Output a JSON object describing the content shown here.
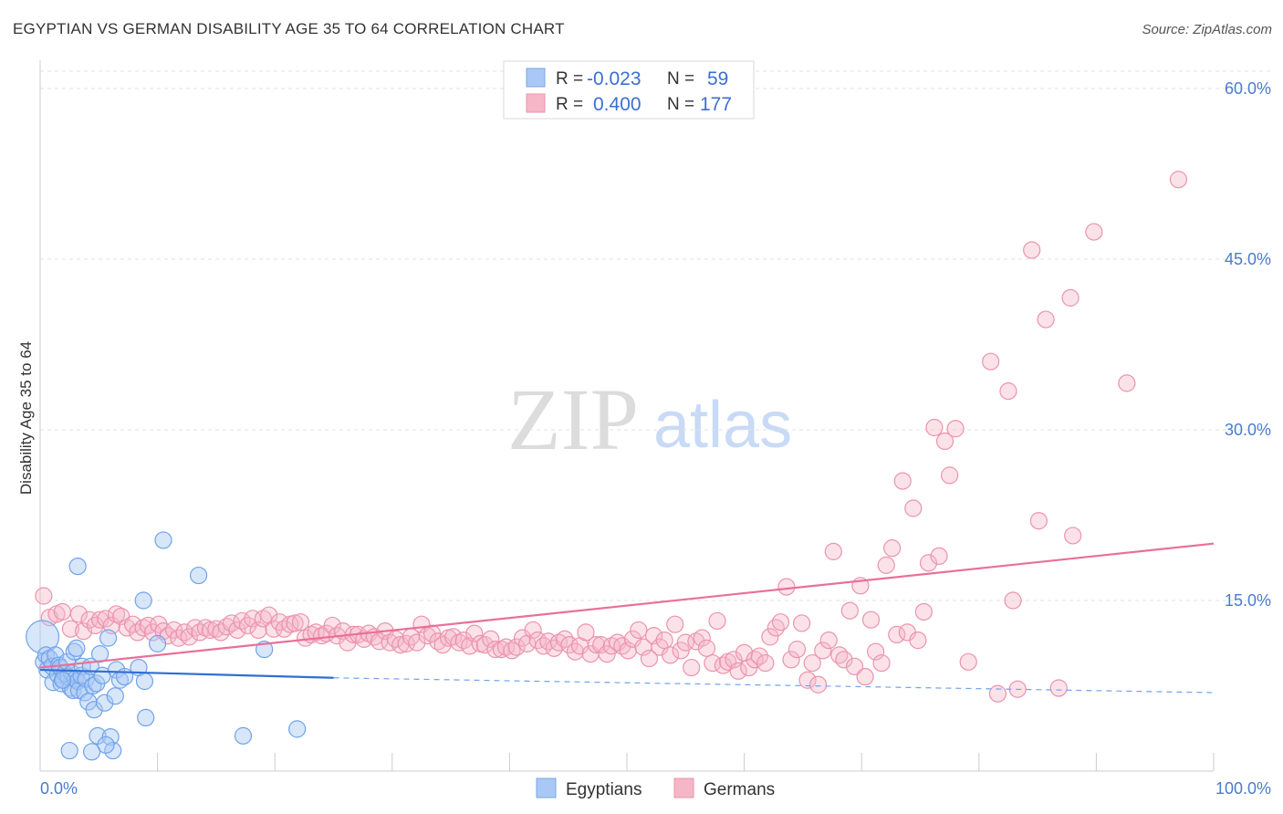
{
  "header": {
    "title": "EGYPTIAN VS GERMAN DISABILITY AGE 35 TO 64 CORRELATION CHART",
    "source": "Source: ZipAtlas.com"
  },
  "watermark": {
    "zip": "ZIP",
    "atlas": "atlas"
  },
  "legend_top": {
    "rows": [
      {
        "r_label": "R =",
        "r_value": "-0.023",
        "n_label": "N =",
        "n_value": "59",
        "color": "#a9c8f5"
      },
      {
        "r_label": "R =",
        "r_value": "0.400",
        "n_label": "N =",
        "n_value": "177",
        "color": "#f5b6c8"
      }
    ]
  },
  "legend_bottom": {
    "items": [
      {
        "label": "Egyptians",
        "color": "#a9c8f5"
      },
      {
        "label": "Germans",
        "color": "#f5b6c8"
      }
    ]
  },
  "chart_data": {
    "type": "scatter",
    "title": "EGYPTIAN VS GERMAN DISABILITY AGE 35 TO 64 CORRELATION CHART",
    "ylabel": "Disability Age 35 to 64",
    "xlim": [
      0,
      100
    ],
    "ylim": [
      0,
      60
    ],
    "x_tick_labels": [
      "0.0%",
      "100.0%"
    ],
    "y_ticks": [
      15,
      30,
      45,
      60
    ],
    "y_tick_labels": [
      "15.0%",
      "30.0%",
      "45.0%",
      "60.0%"
    ],
    "grid": true,
    "legend_position": "top-center",
    "series": [
      {
        "name": "Egyptians",
        "color": "#6fa3ea",
        "trend": {
          "x0": 0,
          "y0": 8.9,
          "x1": 25,
          "y1": 8.2,
          "dash_to_x": 100,
          "dash_to_y": 6.9
        },
        "points": [
          [
            0.2,
            11.8
          ],
          [
            0.3,
            9.6
          ],
          [
            0.5,
            10.2
          ],
          [
            0.6,
            8.9
          ],
          [
            0.8,
            9.9
          ],
          [
            1.0,
            9.2
          ],
          [
            1.1,
            7.8
          ],
          [
            1.3,
            10.2
          ],
          [
            1.5,
            8.5
          ],
          [
            1.6,
            9.3
          ],
          [
            1.7,
            9.1
          ],
          [
            1.8,
            7.7
          ],
          [
            2.0,
            8.0
          ],
          [
            2.1,
            8.6
          ],
          [
            2.3,
            9.6
          ],
          [
            2.4,
            8.3
          ],
          [
            2.6,
            7.3
          ],
          [
            2.7,
            8.6
          ],
          [
            2.8,
            7.1
          ],
          [
            2.9,
            10.5
          ],
          [
            3.0,
            8.1
          ],
          [
            3.1,
            10.8
          ],
          [
            3.2,
            7.9
          ],
          [
            3.3,
            7.1
          ],
          [
            3.5,
            8.4
          ],
          [
            3.6,
            9.2
          ],
          [
            3.8,
            6.9
          ],
          [
            3.9,
            8.1
          ],
          [
            4.1,
            6.1
          ],
          [
            4.3,
            9.2
          ],
          [
            4.5,
            7.5
          ],
          [
            4.6,
            5.4
          ],
          [
            4.8,
            7.7
          ],
          [
            4.9,
            3.1
          ],
          [
            5.1,
            10.3
          ],
          [
            5.3,
            8.4
          ],
          [
            5.5,
            6.0
          ],
          [
            5.8,
            11.7
          ],
          [
            6.0,
            3.0
          ],
          [
            6.2,
            1.8
          ],
          [
            6.4,
            6.6
          ],
          [
            6.5,
            8.9
          ],
          [
            6.8,
            8.0
          ],
          [
            7.2,
            8.3
          ],
          [
            8.4,
            9.1
          ],
          [
            8.8,
            15.0
          ],
          [
            8.9,
            7.9
          ],
          [
            9.0,
            4.7
          ],
          [
            10.0,
            11.2
          ],
          [
            10.5,
            20.3
          ],
          [
            13.5,
            17.2
          ],
          [
            17.3,
            3.1
          ],
          [
            19.1,
            10.7
          ],
          [
            21.9,
            3.7
          ],
          [
            1.9,
            8.0
          ],
          [
            3.2,
            18.0
          ],
          [
            5.6,
            2.3
          ],
          [
            4.4,
            1.7
          ],
          [
            2.5,
            1.8
          ]
        ],
        "sizes": {
          "0": 34
        }
      },
      {
        "name": "Germans",
        "color": "#f08fae",
        "trend": {
          "x0": 0,
          "y0": 9.1,
          "x1": 100,
          "y1": 20.0
        },
        "points": [
          [
            0.3,
            15.4
          ],
          [
            0.8,
            13.5
          ],
          [
            1.4,
            13.8
          ],
          [
            1.9,
            14.0
          ],
          [
            2.6,
            12.5
          ],
          [
            3.3,
            13.8
          ],
          [
            3.7,
            12.3
          ],
          [
            4.2,
            13.3
          ],
          [
            4.7,
            12.8
          ],
          [
            5.1,
            13.3
          ],
          [
            5.6,
            13.4
          ],
          [
            6.1,
            12.8
          ],
          [
            6.5,
            13.8
          ],
          [
            6.9,
            13.6
          ],
          [
            7.4,
            12.6
          ],
          [
            7.9,
            12.9
          ],
          [
            8.3,
            12.2
          ],
          [
            8.8,
            12.6
          ],
          [
            9.2,
            12.8
          ],
          [
            9.6,
            12.2
          ],
          [
            10.1,
            12.9
          ],
          [
            10.5,
            12.3
          ],
          [
            10.9,
            11.9
          ],
          [
            11.4,
            12.4
          ],
          [
            11.8,
            11.7
          ],
          [
            12.3,
            12.2
          ],
          [
            12.7,
            11.8
          ],
          [
            13.2,
            12.6
          ],
          [
            13.6,
            12.2
          ],
          [
            14.1,
            12.6
          ],
          [
            14.5,
            12.4
          ],
          [
            15.0,
            12.5
          ],
          [
            15.4,
            12.2
          ],
          [
            15.9,
            12.7
          ],
          [
            16.3,
            13.0
          ],
          [
            16.8,
            12.4
          ],
          [
            17.2,
            13.2
          ],
          [
            17.7,
            12.8
          ],
          [
            18.1,
            13.4
          ],
          [
            18.6,
            12.4
          ],
          [
            19.0,
            13.4
          ],
          [
            19.5,
            13.7
          ],
          [
            19.9,
            12.5
          ],
          [
            20.4,
            13.1
          ],
          [
            20.8,
            12.5
          ],
          [
            21.3,
            12.9
          ],
          [
            21.7,
            13.0
          ],
          [
            22.2,
            13.1
          ],
          [
            22.6,
            11.7
          ],
          [
            23.1,
            12.0
          ],
          [
            23.5,
            12.2
          ],
          [
            24.0,
            11.9
          ],
          [
            24.4,
            12.1
          ],
          [
            24.9,
            12.8
          ],
          [
            25.3,
            11.9
          ],
          [
            25.8,
            12.3
          ],
          [
            26.2,
            11.3
          ],
          [
            26.7,
            12.0
          ],
          [
            27.1,
            12.0
          ],
          [
            27.6,
            11.6
          ],
          [
            28.0,
            12.1
          ],
          [
            28.5,
            11.8
          ],
          [
            28.9,
            11.4
          ],
          [
            29.4,
            12.3
          ],
          [
            29.8,
            11.3
          ],
          [
            30.3,
            11.6
          ],
          [
            30.7,
            11.1
          ],
          [
            31.2,
            11.2
          ],
          [
            31.6,
            11.8
          ],
          [
            32.1,
            11.3
          ],
          [
            32.5,
            12.9
          ],
          [
            33.0,
            11.9
          ],
          [
            33.4,
            12.1
          ],
          [
            33.9,
            11.4
          ],
          [
            34.3,
            11.1
          ],
          [
            34.8,
            11.7
          ],
          [
            35.2,
            11.8
          ],
          [
            35.7,
            11.3
          ],
          [
            36.1,
            11.5
          ],
          [
            36.6,
            11.0
          ],
          [
            37.0,
            12.1
          ],
          [
            37.5,
            11.2
          ],
          [
            37.9,
            11.1
          ],
          [
            38.4,
            11.6
          ],
          [
            38.8,
            10.7
          ],
          [
            39.3,
            10.7
          ],
          [
            39.7,
            10.9
          ],
          [
            40.2,
            10.6
          ],
          [
            40.6,
            10.9
          ],
          [
            41.1,
            11.7
          ],
          [
            41.5,
            11.2
          ],
          [
            42.0,
            12.4
          ],
          [
            42.4,
            11.5
          ],
          [
            42.9,
            11.0
          ],
          [
            43.3,
            11.4
          ],
          [
            43.8,
            10.8
          ],
          [
            44.2,
            11.3
          ],
          [
            44.7,
            11.6
          ],
          [
            45.1,
            11.1
          ],
          [
            45.6,
            10.5
          ],
          [
            46.0,
            11.0
          ],
          [
            46.5,
            12.2
          ],
          [
            46.9,
            10.3
          ],
          [
            47.4,
            11.1
          ],
          [
            47.8,
            11.1
          ],
          [
            48.3,
            10.3
          ],
          [
            48.7,
            11.0
          ],
          [
            49.2,
            11.3
          ],
          [
            49.6,
            11.0
          ],
          [
            50.1,
            10.6
          ],
          [
            50.5,
            11.6
          ],
          [
            51.0,
            12.4
          ],
          [
            51.4,
            10.9
          ],
          [
            51.9,
            9.9
          ],
          [
            52.3,
            11.9
          ],
          [
            52.8,
            10.9
          ],
          [
            53.2,
            11.5
          ],
          [
            53.7,
            10.2
          ],
          [
            54.1,
            12.9
          ],
          [
            54.6,
            10.6
          ],
          [
            55.0,
            11.3
          ],
          [
            55.5,
            9.1
          ],
          [
            55.9,
            11.4
          ],
          [
            56.4,
            11.7
          ],
          [
            56.8,
            10.8
          ],
          [
            57.3,
            9.5
          ],
          [
            57.7,
            13.2
          ],
          [
            58.2,
            9.3
          ],
          [
            58.6,
            9.6
          ],
          [
            59.1,
            9.8
          ],
          [
            59.5,
            8.8
          ],
          [
            60.0,
            10.4
          ],
          [
            60.4,
            9.1
          ],
          [
            60.9,
            9.8
          ],
          [
            61.3,
            10.1
          ],
          [
            61.8,
            9.5
          ],
          [
            62.2,
            11.8
          ],
          [
            62.7,
            12.6
          ],
          [
            63.1,
            13.1
          ],
          [
            63.6,
            16.2
          ],
          [
            64.0,
            9.8
          ],
          [
            64.5,
            10.7
          ],
          [
            64.9,
            13.0
          ],
          [
            65.4,
            8.0
          ],
          [
            65.8,
            9.5
          ],
          [
            66.3,
            7.6
          ],
          [
            66.7,
            10.6
          ],
          [
            67.2,
            11.5
          ],
          [
            67.6,
            19.3
          ],
          [
            68.1,
            10.2
          ],
          [
            68.5,
            9.8
          ],
          [
            69.0,
            14.1
          ],
          [
            69.4,
            9.2
          ],
          [
            69.9,
            16.3
          ],
          [
            70.3,
            8.3
          ],
          [
            70.8,
            13.3
          ],
          [
            71.2,
            10.5
          ],
          [
            71.7,
            9.5
          ],
          [
            72.1,
            18.1
          ],
          [
            72.6,
            19.6
          ],
          [
            73.0,
            12.0
          ],
          [
            73.5,
            25.5
          ],
          [
            73.9,
            12.2
          ],
          [
            74.4,
            23.1
          ],
          [
            74.8,
            11.5
          ],
          [
            75.3,
            14.0
          ],
          [
            75.7,
            18.3
          ],
          [
            76.2,
            30.2
          ],
          [
            76.6,
            18.9
          ],
          [
            77.1,
            29.0
          ],
          [
            77.5,
            26.0
          ],
          [
            78.0,
            30.1
          ],
          [
            79.1,
            9.6
          ],
          [
            81.0,
            36.0
          ],
          [
            82.5,
            33.4
          ],
          [
            82.9,
            15.0
          ],
          [
            84.5,
            45.8
          ],
          [
            85.1,
            22.0
          ],
          [
            85.7,
            39.7
          ],
          [
            86.8,
            7.3
          ],
          [
            87.8,
            41.6
          ],
          [
            88.0,
            20.7
          ],
          [
            89.8,
            47.4
          ],
          [
            92.6,
            34.1
          ],
          [
            97.0,
            52.0
          ],
          [
            81.6,
            6.8
          ],
          [
            83.3,
            7.2
          ]
        ]
      }
    ]
  }
}
